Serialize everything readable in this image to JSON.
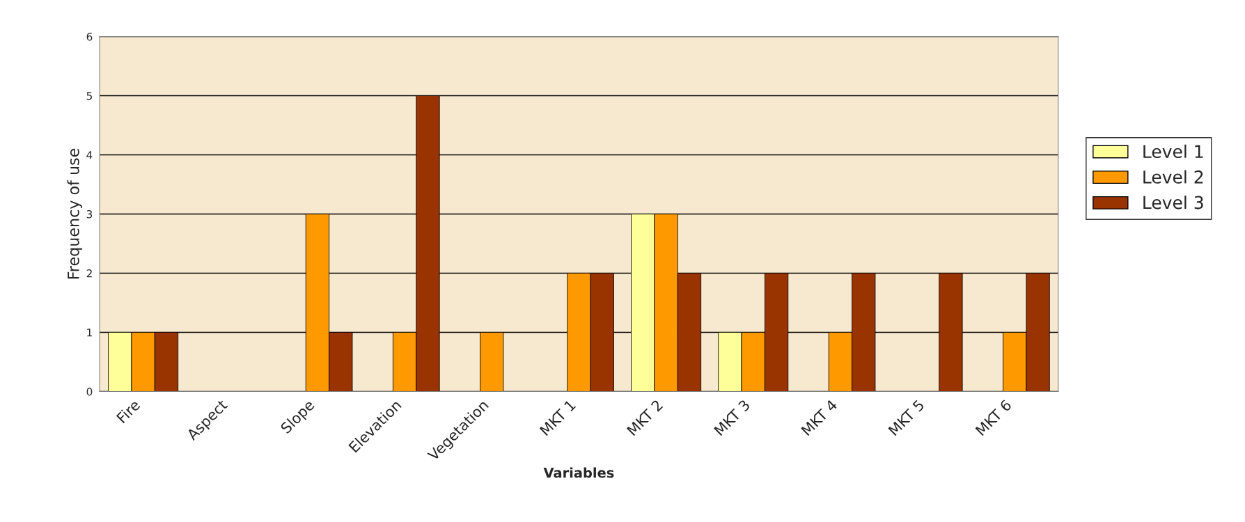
{
  "chart_data": {
    "type": "bar",
    "xlabel": "Variables",
    "ylabel": "Frequency of use",
    "categories": [
      "Fire",
      "Aspect",
      "Slope",
      "Elevation",
      "Vegetation",
      "MKT 1",
      "MKT 2",
      "MKT 3",
      "MKT 4",
      "MKT 5",
      "MKT 6"
    ],
    "series": [
      {
        "name": "Level 1",
        "color": "#ffff99",
        "values": [
          1,
          0,
          0,
          0,
          0,
          0,
          3,
          1,
          0,
          0,
          0
        ]
      },
      {
        "name": "Level 2",
        "color": "#ff9900",
        "values": [
          1,
          0,
          3,
          1,
          1,
          2,
          3,
          1,
          1,
          0,
          1
        ]
      },
      {
        "name": "Level 3",
        "color": "#993300",
        "values": [
          1,
          0,
          1,
          5,
          0,
          2,
          2,
          2,
          2,
          2,
          2
        ]
      }
    ],
    "ylim": [
      0,
      6
    ],
    "yticks": [
      0,
      1,
      2,
      3,
      4,
      5,
      6
    ],
    "grid": "y",
    "legend": "right"
  }
}
